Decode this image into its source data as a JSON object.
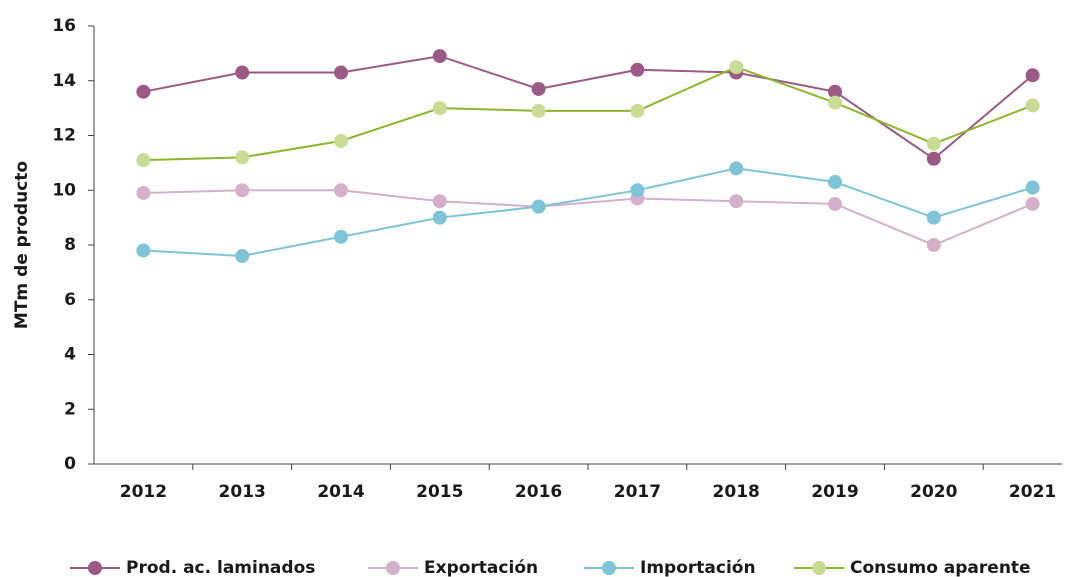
{
  "chart_data": {
    "type": "line",
    "y_label": "MTm de producto",
    "categories": [
      "2012",
      "2013",
      "2014",
      "2015",
      "2016",
      "2017",
      "2018",
      "2019",
      "2020",
      "2021"
    ],
    "series": [
      {
        "name": "Prod. ac. laminados",
        "color": "#9b5a84",
        "marker_color": "#9b5a84",
        "values": [
          13.6,
          14.3,
          14.3,
          14.9,
          13.7,
          14.4,
          14.3,
          13.6,
          11.15,
          14.2
        ]
      },
      {
        "name": "Exportación",
        "color": "#d4b0cb",
        "marker_color": "#d4b0cb",
        "values": [
          9.9,
          10.0,
          10.0,
          9.6,
          9.4,
          9.7,
          9.6,
          9.5,
          8.0,
          9.5
        ]
      },
      {
        "name": "Importación",
        "color": "#7ec4d6",
        "marker_color": "#7ec4d6",
        "values": [
          7.8,
          7.6,
          8.3,
          9.0,
          9.4,
          10.0,
          10.8,
          10.3,
          9.0,
          10.1
        ]
      },
      {
        "name": "Consumo aparente",
        "color": "#8fb52e",
        "marker_color": "#c8dc96",
        "values": [
          11.1,
          11.2,
          11.8,
          13.0,
          12.9,
          12.9,
          14.5,
          13.2,
          11.7,
          13.1
        ]
      }
    ],
    "ylim": [
      0,
      16
    ],
    "yticks": [
      0,
      2,
      4,
      6,
      8,
      10,
      12,
      14,
      16
    ],
    "grid": false,
    "legend": "bottom"
  }
}
